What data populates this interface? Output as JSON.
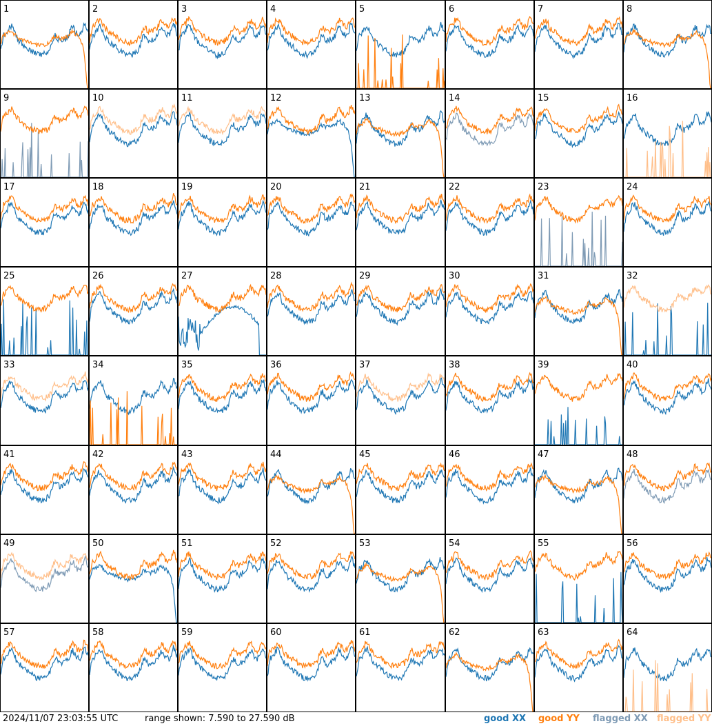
{
  "chart_data": {
    "type": "line",
    "timestamp": "2024/11/07 23:03:55 UTC",
    "range_text": "range shown: 7.590 to 27.590 dB",
    "ylim": [
      7.59,
      27.59
    ],
    "legend": [
      {
        "key": "good_xx",
        "label": "good XX",
        "color": "#1f77b4"
      },
      {
        "key": "good_yy",
        "label": "good YY",
        "color": "#ff7f0e"
      },
      {
        "key": "flagged_xx",
        "label": "flagged XX",
        "color": "#7f9bb5"
      },
      {
        "key": "flagged_yy",
        "label": "flagged YY",
        "color": "#ffbf8a"
      }
    ],
    "panels": [
      {
        "label": "1",
        "xx": "good",
        "yy": "good",
        "yy_shape": "droop"
      },
      {
        "label": "2",
        "xx": "good",
        "yy": "good"
      },
      {
        "label": "3",
        "xx": "good",
        "yy": "good"
      },
      {
        "label": "4",
        "xx": "good",
        "yy": "good"
      },
      {
        "label": "5",
        "xx": "good",
        "yy": "good",
        "yy_shape": "spikes"
      },
      {
        "label": "6",
        "xx": "good",
        "yy": "good"
      },
      {
        "label": "7",
        "xx": "good",
        "yy": "good"
      },
      {
        "label": "8",
        "xx": "good",
        "yy": "good",
        "yy_shape": "droop"
      },
      {
        "label": "9",
        "xx": "flagged",
        "yy": "good",
        "xx_shape": "spikes"
      },
      {
        "label": "10",
        "xx": "good",
        "yy": "flagged"
      },
      {
        "label": "11",
        "xx": "good",
        "yy": "flagged"
      },
      {
        "label": "12",
        "xx": "good",
        "yy": "good",
        "xx_shape": "droop"
      },
      {
        "label": "13",
        "xx": "good",
        "yy": "good",
        "yy_shape": "droop"
      },
      {
        "label": "14",
        "xx": "flagged",
        "yy": "good"
      },
      {
        "label": "15",
        "xx": "good",
        "yy": "good"
      },
      {
        "label": "16",
        "xx": "good",
        "yy": "flagged",
        "yy_shape": "spikes"
      },
      {
        "label": "17",
        "xx": "good",
        "yy": "good"
      },
      {
        "label": "18",
        "xx": "good",
        "yy": "good"
      },
      {
        "label": "19",
        "xx": "good",
        "yy": "good"
      },
      {
        "label": "20",
        "xx": "good",
        "yy": "good"
      },
      {
        "label": "21",
        "xx": "good",
        "yy": "good"
      },
      {
        "label": "22",
        "xx": "good",
        "yy": "good"
      },
      {
        "label": "23",
        "xx": "flagged",
        "yy": "good",
        "xx_shape": "spikes"
      },
      {
        "label": "24",
        "xx": "good",
        "yy": "good"
      },
      {
        "label": "25",
        "xx": "good",
        "yy": "good",
        "xx_shape": "spikes"
      },
      {
        "label": "26",
        "xx": "good",
        "yy": "good"
      },
      {
        "label": "27",
        "xx": "good",
        "yy": "good",
        "xx_shape": "broken"
      },
      {
        "label": "28",
        "xx": "good",
        "yy": "good"
      },
      {
        "label": "29",
        "xx": "good",
        "yy": "good"
      },
      {
        "label": "30",
        "xx": "good",
        "yy": "good"
      },
      {
        "label": "31",
        "xx": "good",
        "yy": "good",
        "yy_shape": "droop"
      },
      {
        "label": "32",
        "xx": "good",
        "yy": "flagged",
        "xx_shape": "spikes"
      },
      {
        "label": "33",
        "xx": "good",
        "yy": "flagged"
      },
      {
        "label": "34",
        "xx": "good",
        "yy": "good",
        "yy_shape": "spikes"
      },
      {
        "label": "35",
        "xx": "good",
        "yy": "good"
      },
      {
        "label": "36",
        "xx": "good",
        "yy": "good"
      },
      {
        "label": "37",
        "xx": "good",
        "yy": "flagged"
      },
      {
        "label": "38",
        "xx": "good",
        "yy": "good"
      },
      {
        "label": "39",
        "xx": "good",
        "yy": "good",
        "xx_shape": "spikes"
      },
      {
        "label": "40",
        "xx": "good",
        "yy": "good"
      },
      {
        "label": "41",
        "xx": "good",
        "yy": "good"
      },
      {
        "label": "42",
        "xx": "good",
        "yy": "good"
      },
      {
        "label": "43",
        "xx": "good",
        "yy": "good"
      },
      {
        "label": "44",
        "xx": "good",
        "yy": "good",
        "yy_shape": "droop"
      },
      {
        "label": "45",
        "xx": "good",
        "yy": "good"
      },
      {
        "label": "46",
        "xx": "good",
        "yy": "good"
      },
      {
        "label": "47",
        "xx": "good",
        "yy": "good",
        "yy_shape": "droop"
      },
      {
        "label": "48",
        "xx": "flagged",
        "yy": "good"
      },
      {
        "label": "49",
        "xx": "flagged",
        "yy": "flagged"
      },
      {
        "label": "50",
        "xx": "good",
        "yy": "good",
        "xx_shape": "droop"
      },
      {
        "label": "51",
        "xx": "good",
        "yy": "good"
      },
      {
        "label": "52",
        "xx": "good",
        "yy": "good"
      },
      {
        "label": "53",
        "xx": "good",
        "yy": "good",
        "yy_shape": "droop"
      },
      {
        "label": "54",
        "xx": "good",
        "yy": "good"
      },
      {
        "label": "55",
        "xx": "good",
        "yy": "good",
        "xx_shape": "spikes"
      },
      {
        "label": "56",
        "xx": "good",
        "yy": "good"
      },
      {
        "label": "57",
        "xx": "good",
        "yy": "good"
      },
      {
        "label": "58",
        "xx": "good",
        "yy": "good"
      },
      {
        "label": "59",
        "xx": "good",
        "yy": "good"
      },
      {
        "label": "60",
        "xx": "good",
        "yy": "good"
      },
      {
        "label": "61",
        "xx": "good",
        "yy": "good"
      },
      {
        "label": "62",
        "xx": "good",
        "yy": "good",
        "yy_shape": "droop"
      },
      {
        "label": "63",
        "xx": "good",
        "yy": "good"
      },
      {
        "label": "64",
        "xx": "good",
        "yy": "flagged",
        "yy_shape": "spikes"
      }
    ]
  }
}
